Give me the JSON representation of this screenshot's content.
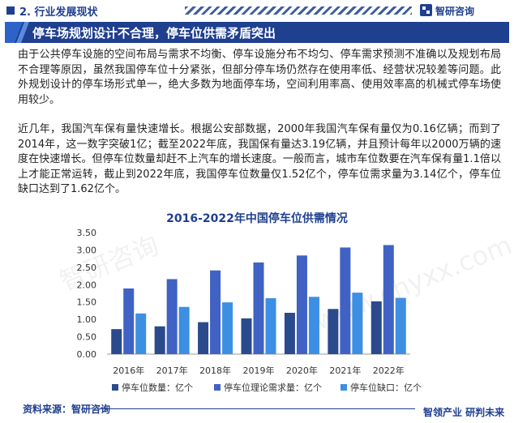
{
  "header": {
    "section_title": "2. 行业发展现状",
    "logo_text": "智研咨询",
    "logo_icon": "zhiyan-logo-icon"
  },
  "banner": {
    "title": "停车场规划设计不合理，停车位供需矛盾突出"
  },
  "paragraphs": [
    "由于公共停车设施的空间布局与需求不均衡、停车设施分布不均匀、停车需求预测不准确以及规划布局不合理等原因，虽然我国停车位十分紧张，但部分停车场仍然存在使用率低、经营状况较差等问题。此外规划设计的停车场形式单一，绝大多数为地面停车场，空间利用率高、使用效率高的机械式停车场使用较少。",
    "近几年，我国汽车保有量快速增长。根据公安部数据，2000年我国汽车保有量仅为0.16亿辆；而到了2014年，这一数字突破1亿；截至2022年底，我国保有量达3.19亿辆，并且预计每年以2000万辆的速度在快速增长。但停车位数量却赶不上汽车的增长速度。一般而言，城市车位数要在汽车保有量1.1倍以上才能正常运转，截止到2022年底，我国停车位数量仅1.52亿个，停车位需求量为3.14亿个，停车位缺口达到了1.62亿个。"
  ],
  "watermarks": [
    "智研咨询",
    "www.chyxx.com"
  ],
  "chart_data": {
    "type": "bar",
    "title": "2016-2022年中国停车位供需情况",
    "categories": [
      "2016年",
      "2017年",
      "2018年",
      "2019年",
      "2020年",
      "2021年",
      "2022年"
    ],
    "series": [
      {
        "name": "停车位数量：亿个",
        "values": [
          0.72,
          0.8,
          0.92,
          1.03,
          1.19,
          1.3,
          1.52
        ],
        "color": "#2a4a8c"
      },
      {
        "name": "停车位理论需求量：亿个",
        "values": [
          1.89,
          2.16,
          2.41,
          2.64,
          2.84,
          3.07,
          3.14
        ],
        "color": "#3f62c4"
      },
      {
        "name": "停车位缺口：亿个",
        "values": [
          1.17,
          1.36,
          1.49,
          1.61,
          1.65,
          1.77,
          1.62
        ],
        "color": "#3d8fe3"
      }
    ],
    "y_ticks": [
      "0.00",
      "0.50",
      "1.00",
      "1.50",
      "2.00",
      "2.50",
      "3.00",
      "3.50"
    ],
    "ylim": [
      0,
      3.5
    ],
    "grid": false,
    "legend_position": "bottom"
  },
  "footer": {
    "source": "资料来源：智研咨询",
    "slogan": "智领产业  研判未来"
  }
}
